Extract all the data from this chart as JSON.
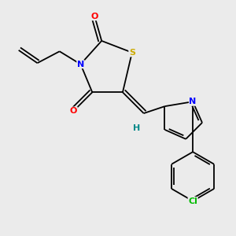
{
  "background_color": "#ebebeb",
  "bond_color": "#000000",
  "atom_colors": {
    "O": "#ff0000",
    "N": "#0000ff",
    "S": "#ccaa00",
    "Cl": "#00bb00",
    "H": "#008888",
    "C": "#000000"
  },
  "figsize": [
    3.0,
    3.0
  ],
  "dpi": 100
}
